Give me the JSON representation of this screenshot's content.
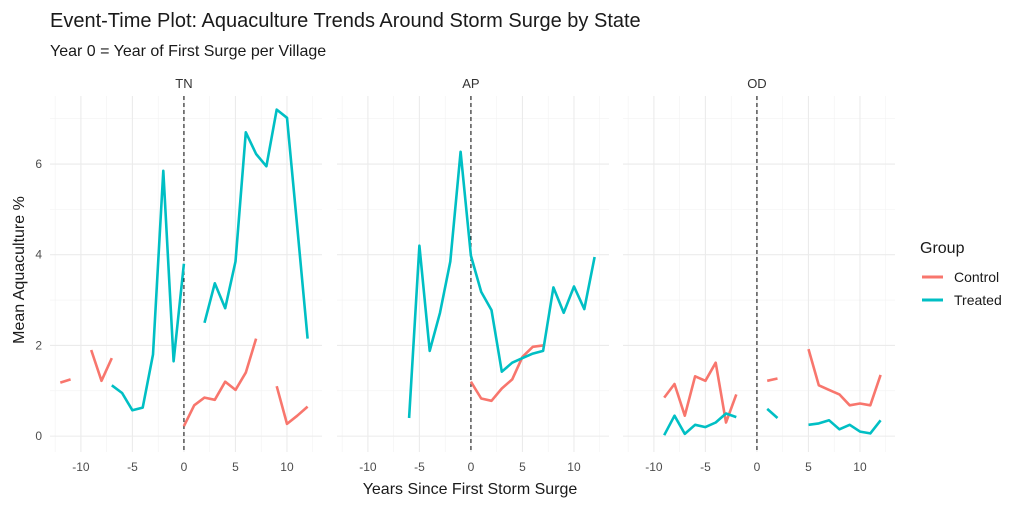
{
  "chart_data": {
    "type": "line",
    "title": "Event-Time Plot: Aquaculture Trends Around Storm Surge by State",
    "subtitle": "Year 0 = Year of First Surge per Village",
    "xlabel": "Years Since First Storm Surge",
    "ylabel": "Mean Aquaculture %",
    "xlim": [
      -13,
      13.4
    ],
    "ylim": [
      -0.35,
      7.5
    ],
    "xticks": [
      -10,
      -5,
      0,
      5,
      10
    ],
    "xtick_labels": [
      "-10",
      "-5",
      "0",
      "5",
      "10"
    ],
    "yticks": [
      0,
      2,
      4,
      6
    ],
    "ytick_labels": [
      "0",
      "2",
      "4",
      "6"
    ],
    "vline_x": 0,
    "grid": true,
    "legend": {
      "title": "Group",
      "position": "right",
      "entries": [
        {
          "label": "Control",
          "color": "#F8766D"
        },
        {
          "label": "Treated",
          "color": "#00BFC4"
        }
      ]
    },
    "panels": [
      {
        "label": "TN",
        "series": [
          {
            "name": "Control",
            "color": "#F8766D",
            "segments": [
              [
                [
                  -12,
                  1.18
                ],
                [
                  -11,
                  1.25
                ]
              ],
              [
                [
                  -9,
                  1.9
                ],
                [
                  -8,
                  1.22
                ],
                [
                  -7,
                  1.72
                ]
              ],
              [
                [
                  0,
                  0.22
                ],
                [
                  1,
                  0.68
                ],
                [
                  2,
                  0.85
                ],
                [
                  3,
                  0.8
                ],
                [
                  4,
                  1.2
                ],
                [
                  5,
                  1.02
                ],
                [
                  6,
                  1.4
                ],
                [
                  7,
                  2.15
                ]
              ],
              [
                [
                  9,
                  1.1
                ],
                [
                  10,
                  0.27
                ],
                [
                  11,
                  0.45
                ],
                [
                  12,
                  0.65
                ]
              ]
            ]
          },
          {
            "name": "Treated",
            "color": "#00BFC4",
            "segments": [
              [
                [
                  -7,
                  1.12
                ],
                [
                  -6,
                  0.95
                ],
                [
                  -5,
                  0.57
                ],
                [
                  -4,
                  0.63
                ],
                [
                  -3,
                  1.8
                ],
                [
                  -2,
                  5.85
                ],
                [
                  -1,
                  1.65
                ],
                [
                  0,
                  3.8
                ]
              ],
              [
                [
                  2,
                  2.5
                ],
                [
                  3,
                  3.37
                ],
                [
                  4,
                  2.82
                ],
                [
                  5,
                  3.85
                ],
                [
                  6,
                  6.7
                ],
                [
                  7,
                  6.22
                ],
                [
                  8,
                  5.95
                ],
                [
                  9,
                  7.2
                ],
                [
                  10,
                  7.02
                ],
                [
                  11,
                  4.6
                ],
                [
                  12,
                  2.15
                ]
              ]
            ]
          }
        ]
      },
      {
        "label": "AP",
        "series": [
          {
            "name": "Control",
            "color": "#F8766D",
            "segments": [
              [
                [
                  0,
                  1.2
                ],
                [
                  1,
                  0.83
                ],
                [
                  2,
                  0.78
                ],
                [
                  3,
                  1.05
                ],
                [
                  4,
                  1.25
                ],
                [
                  5,
                  1.75
                ],
                [
                  6,
                  1.97
                ],
                [
                  7,
                  2.0
                ]
              ]
            ]
          },
          {
            "name": "Treated",
            "color": "#00BFC4",
            "segments": [
              [
                [
                  -6,
                  0.4
                ],
                [
                  -5,
                  4.2
                ],
                [
                  -4,
                  1.88
                ],
                [
                  -3,
                  2.72
                ],
                [
                  -2,
                  3.85
                ],
                [
                  -1,
                  6.27
                ],
                [
                  0,
                  3.98
                ],
                [
                  1,
                  3.18
                ],
                [
                  2,
                  2.78
                ],
                [
                  3,
                  1.42
                ],
                [
                  4,
                  1.62
                ],
                [
                  5,
                  1.72
                ],
                [
                  6,
                  1.82
                ],
                [
                  7,
                  1.88
                ],
                [
                  8,
                  3.28
                ],
                [
                  9,
                  2.72
                ],
                [
                  10,
                  3.3
                ],
                [
                  11,
                  2.8
                ],
                [
                  12,
                  3.95
                ]
              ]
            ]
          }
        ]
      },
      {
        "label": "OD",
        "series": [
          {
            "name": "Control",
            "color": "#F8766D",
            "segments": [
              [
                [
                  -9,
                  0.85
                ],
                [
                  -8,
                  1.15
                ],
                [
                  -7,
                  0.45
                ],
                [
                  -6,
                  1.32
                ],
                [
                  -5,
                  1.22
                ],
                [
                  -4,
                  1.62
                ],
                [
                  -3,
                  0.3
                ],
                [
                  -2,
                  0.92
                ]
              ],
              [
                [
                  1,
                  1.22
                ],
                [
                  2,
                  1.27
                ]
              ],
              [
                [
                  5,
                  1.92
                ],
                [
                  6,
                  1.12
                ],
                [
                  7,
                  1.02
                ],
                [
                  8,
                  0.92
                ],
                [
                  9,
                  0.68
                ],
                [
                  10,
                  0.72
                ],
                [
                  11,
                  0.68
                ],
                [
                  12,
                  1.35
                ]
              ]
            ]
          },
          {
            "name": "Treated",
            "color": "#00BFC4",
            "segments": [
              [
                [
                  -9,
                  0.02
                ],
                [
                  -8,
                  0.45
                ],
                [
                  -7,
                  0.05
                ],
                [
                  -6,
                  0.25
                ],
                [
                  -5,
                  0.2
                ],
                [
                  -4,
                  0.3
                ],
                [
                  -3,
                  0.5
                ],
                [
                  -2,
                  0.42
                ]
              ],
              [
                [
                  1,
                  0.6
                ],
                [
                  2,
                  0.4
                ]
              ],
              [
                [
                  5,
                  0.25
                ],
                [
                  6,
                  0.28
                ],
                [
                  7,
                  0.35
                ],
                [
                  8,
                  0.15
                ],
                [
                  9,
                  0.25
                ],
                [
                  10,
                  0.1
                ],
                [
                  11,
                  0.06
                ],
                [
                  12,
                  0.35
                ]
              ]
            ]
          }
        ]
      }
    ]
  }
}
